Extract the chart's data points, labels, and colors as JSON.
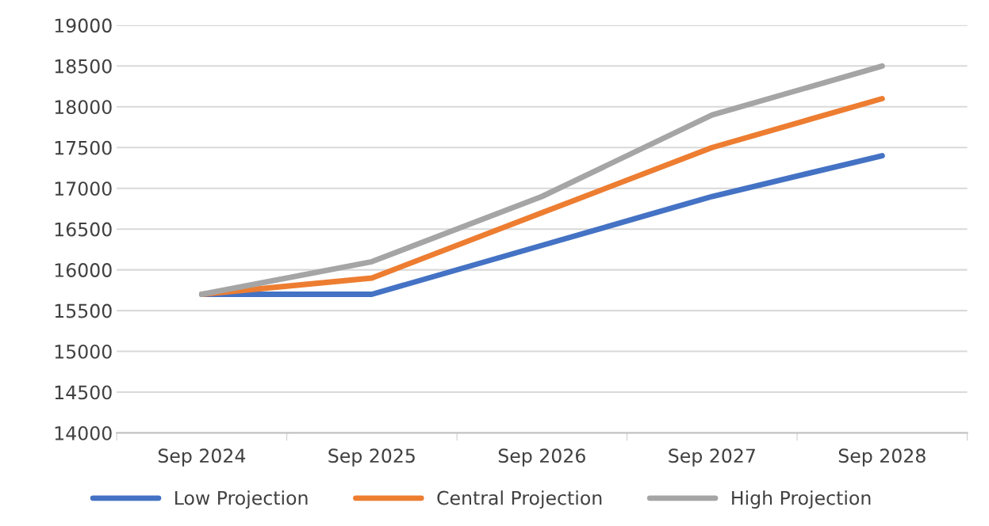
{
  "chart_data": {
    "type": "line",
    "categories": [
      "Sep 2024",
      "Sep 2025",
      "Sep 2026",
      "Sep 2027",
      "Sep 2028"
    ],
    "series": [
      {
        "name": "Low Projection",
        "color": "#4472c4",
        "values": [
          15700,
          15700,
          16300,
          16900,
          17400
        ]
      },
      {
        "name": "Central Projection",
        "color": "#ed7d31",
        "values": [
          15700,
          15900,
          16700,
          17500,
          18100
        ]
      },
      {
        "name": "High Projection",
        "color": "#a5a5a5",
        "values": [
          15700,
          16100,
          16900,
          17900,
          18500
        ]
      }
    ],
    "ylim": [
      14000,
      19000
    ],
    "yticks": [
      14000,
      14500,
      15000,
      15500,
      16000,
      16500,
      17000,
      17500,
      18000,
      18500,
      19000
    ],
    "grid": "y",
    "legend": "bottom",
    "marker": "none",
    "line_style": "solid"
  }
}
